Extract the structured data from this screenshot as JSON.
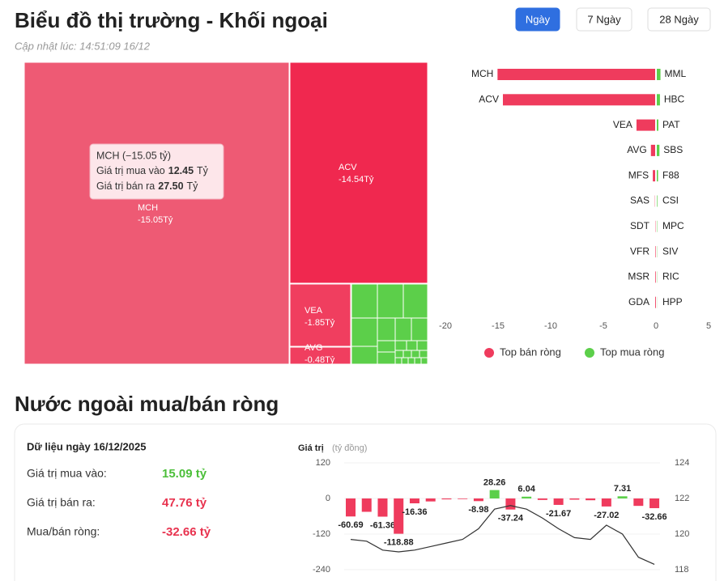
{
  "header": {
    "title": "Biểu đồ thị trường - Khối ngoại",
    "updated": "Cập nhật lúc: 14:51:09 16/12",
    "buttons": [
      "Ngày",
      "7 Ngày",
      "28 Ngày"
    ]
  },
  "section_title": "Nước ngoài mua/bán ròng",
  "summary": {
    "title": "Dữ liệu ngày 16/12/2025",
    "rows": [
      [
        "Giá trị mua vào:",
        "15.09 tỷ"
      ],
      [
        "Giá trị bán ra:",
        "47.76 tỷ"
      ],
      [
        "Mua/bán ròng:",
        "-32.66 tỷ"
      ]
    ]
  },
  "chart_data": [
    {
      "type": "treemap",
      "categories": [
        "MCH",
        "ACV",
        "VEA",
        "AVG"
      ],
      "values": [
        -15.05,
        -14.54,
        -1.85,
        -0.48
      ],
      "value_labels": [
        "-15.05Tỷ",
        "-14.54Tỷ",
        "-1.85Tỷ",
        "-0.48Tỷ"
      ],
      "colors": [
        "#ee5a74",
        "#f0284f",
        "#f03e5f",
        "#f03e5f"
      ],
      "tooltip": {
        "title": "MCH (−15.05 tỷ)",
        "lines": [
          [
            "Giá trị mua vào",
            "12.45",
            "Tỷ"
          ],
          [
            "Giá trị bán ra",
            "27.50",
            "Tỷ"
          ]
        ]
      }
    },
    {
      "type": "diverging-bar",
      "series": [
        {
          "name": "Top bán ròng",
          "color": "#ef3b5d",
          "categories": [
            "MCH",
            "ACV",
            "VEA",
            "AVG",
            "MFS",
            "SAS",
            "SDT",
            "VFR",
            "MSR",
            "GDA"
          ],
          "values": [
            -15.05,
            -14.54,
            -1.85,
            -0.48,
            -0.3,
            -0.1,
            -0.05,
            -0.03,
            -0.02,
            -0.01
          ]
        },
        {
          "name": "Top mua ròng",
          "color": "#5ccf4a",
          "categories": [
            "MML",
            "HBC",
            "PAT",
            "SBS",
            "F88",
            "CSI",
            "MPC",
            "SIV",
            "RIC",
            "HPP"
          ],
          "values": [
            0.35,
            0.3,
            0.15,
            0.25,
            0.12,
            0.05,
            0.03,
            0.02,
            0.02,
            0.01
          ]
        }
      ],
      "xlim": [
        -20,
        5
      ],
      "xticks": [
        -20,
        -15,
        -10,
        -5,
        0,
        5
      ]
    },
    {
      "type": "bar-line",
      "y_label": "Giá trị",
      "y_unit": "(tỷ đồng)",
      "series": [
        {
          "type": "bar",
          "color_positive": "#5ccf4a",
          "color_negative": "#ef3b5d",
          "values": [
            -60.69,
            -45,
            -61.36,
            -118.88,
            -16.36,
            -10,
            -3,
            -2,
            -8.98,
            28.26,
            -37.24,
            6.04,
            -5,
            -21.67,
            -4,
            -6,
            -27.02,
            7.31,
            -25,
            -32.66
          ],
          "value_labels": [
            "-60.69",
            null,
            "-61.36",
            "-118.88",
            "-16.36",
            null,
            null,
            null,
            "-8.98",
            "28.26",
            "-37.24",
            "6.04",
            null,
            "-21.67",
            null,
            null,
            "-27.02",
            "7.31",
            null,
            "-32.66"
          ]
        },
        {
          "type": "line",
          "axis": "y2",
          "color": "#333333",
          "values": [
            119.7,
            119.6,
            119.1,
            119.0,
            119.1,
            119.3,
            119.5,
            119.7,
            120.3,
            121.4,
            121.6,
            121.4,
            120.9,
            120.3,
            119.8,
            119.7,
            120.5,
            120.0,
            118.7,
            118.3
          ]
        }
      ],
      "ylim": [
        -240,
        120
      ],
      "yticks": [
        120,
        0,
        -120,
        -240
      ],
      "y2lim": [
        118,
        124
      ],
      "y2ticks": [
        124,
        122,
        120,
        118
      ]
    }
  ]
}
